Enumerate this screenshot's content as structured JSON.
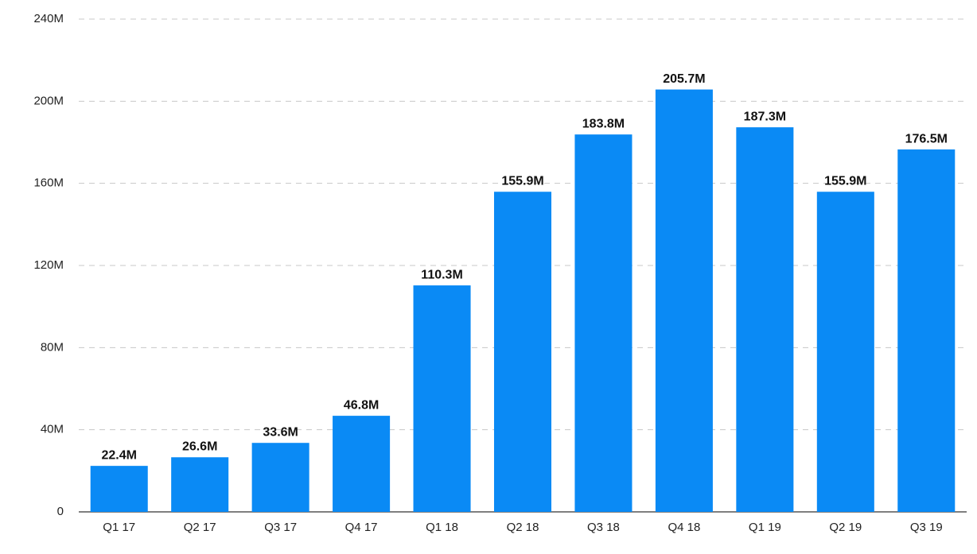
{
  "chart_data": {
    "type": "bar",
    "categories": [
      "Q1 17",
      "Q2 17",
      "Q3 17",
      "Q4 17",
      "Q1 18",
      "Q2 18",
      "Q3 18",
      "Q4 18",
      "Q1 19",
      "Q2 19",
      "Q3 19"
    ],
    "values": [
      22.4,
      26.6,
      33.6,
      46.8,
      110.3,
      155.9,
      183.8,
      205.7,
      187.3,
      155.9,
      176.5
    ],
    "value_labels": [
      "22.4M",
      "26.6M",
      "33.6M",
      "46.8M",
      "110.3M",
      "155.9M",
      "183.8M",
      "205.7M",
      "187.3M",
      "155.9M",
      "176.5M"
    ],
    "color": "#0a8af5",
    "ylim": [
      0,
      240
    ],
    "yticks": [
      0,
      {
        "value": 40,
        "label": "40M"
      },
      {
        "value": 80,
        "label": "80M"
      },
      {
        "value": 120,
        "label": "120M"
      },
      {
        "value": 160,
        "label": "160M"
      },
      {
        "value": 200,
        "label": "200M"
      },
      {
        "value": 240,
        "label": "240M"
      }
    ],
    "grid": true
  }
}
